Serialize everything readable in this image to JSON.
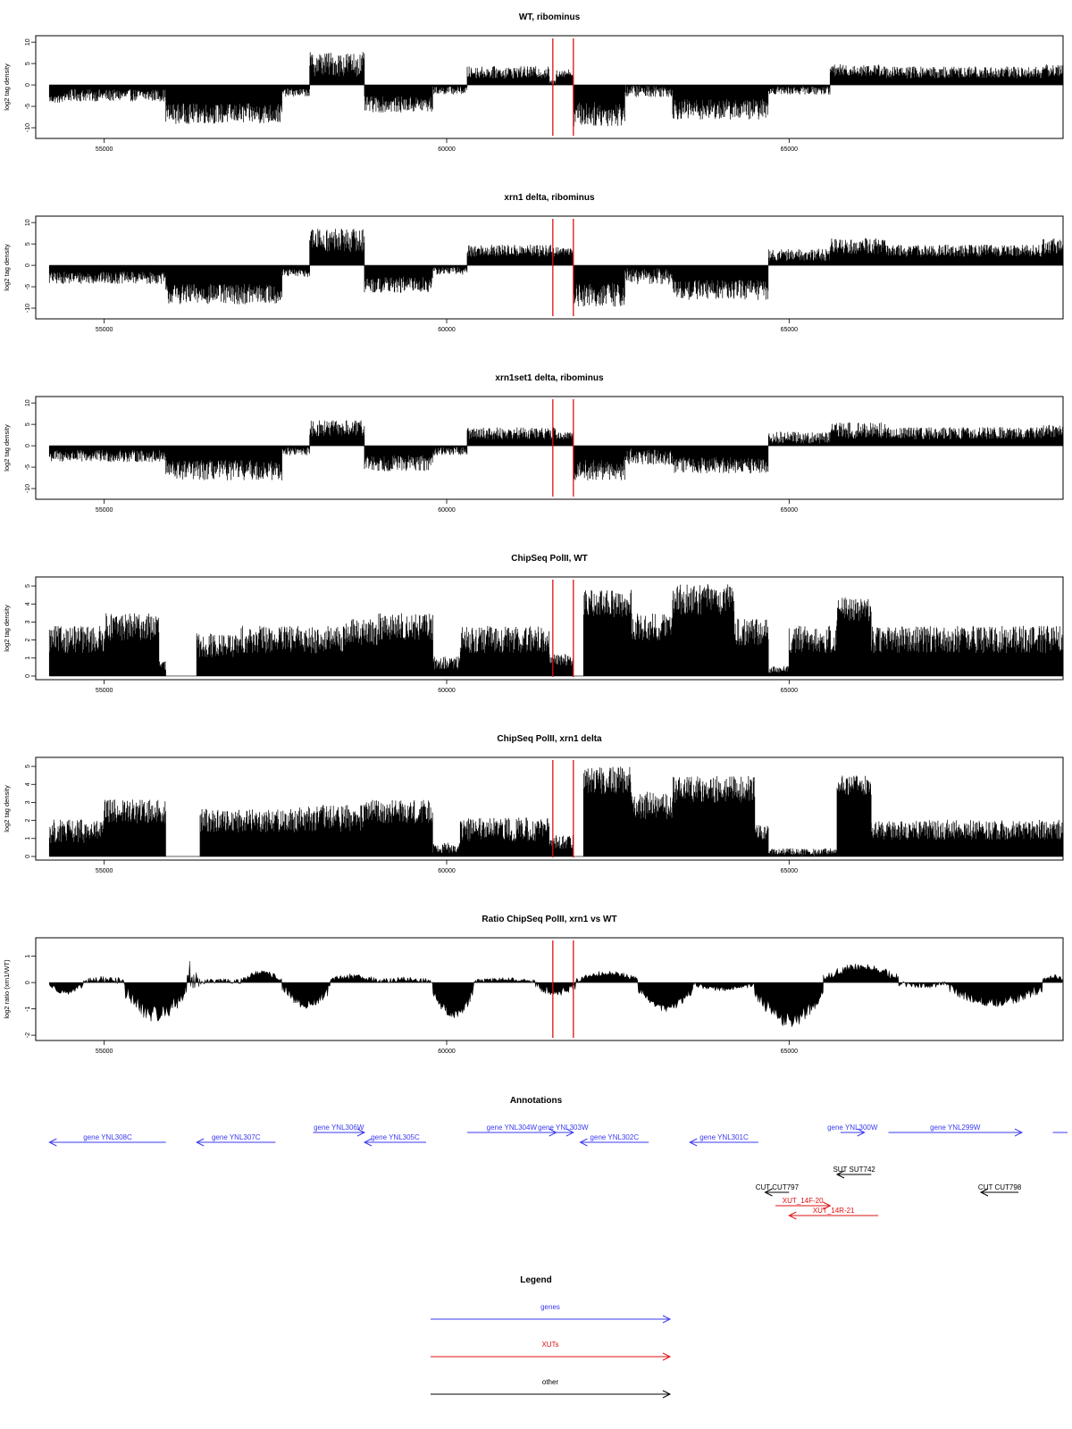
{
  "colors": {
    "genes": "#3a3af0",
    "xuts": "#e01010",
    "other": "#000000",
    "data": "#000000",
    "marker": "#e01010"
  },
  "markers_x": [
    61550,
    61850
  ],
  "x_axis": {
    "range": [
      54000,
      69000
    ],
    "ticks": [
      55000,
      60000,
      65000
    ],
    "tick_labels": [
      "55000",
      "60000",
      "65000"
    ]
  },
  "chart_data": [
    {
      "type": "bar",
      "title": "WT, ribominus",
      "ylabel": "log2 tag density",
      "ylim": [
        -12.5,
        11.5
      ],
      "yticks": [
        -10,
        -5,
        0,
        5,
        10
      ],
      "ytick_labels": [
        "-10",
        "-5",
        "0",
        "5",
        "10"
      ],
      "x_range": [
        54000,
        69000
      ],
      "profile": [
        [
          54200,
          54400,
          -3,
          1
        ],
        [
          54400,
          55900,
          -2,
          1.5
        ],
        [
          55900,
          57600,
          -6,
          2.5
        ],
        [
          57600,
          58000,
          -1.5,
          1
        ],
        [
          58000,
          58800,
          4,
          3
        ],
        [
          58800,
          59800,
          -4,
          2
        ],
        [
          59800,
          60300,
          -1,
          1
        ],
        [
          60300,
          61500,
          2.5,
          1.5
        ],
        [
          61500,
          61600,
          0.5,
          0.5
        ],
        [
          61600,
          61850,
          2.5,
          1
        ],
        [
          61850,
          62600,
          -6,
          3
        ],
        [
          62600,
          63300,
          -1,
          1.5
        ],
        [
          63300,
          64700,
          -5,
          2.5
        ],
        [
          64700,
          65600,
          -1,
          1
        ],
        [
          65600,
          66400,
          3,
          1.5
        ],
        [
          66400,
          68700,
          2.5,
          1.5
        ],
        [
          68700,
          69000,
          3,
          1.5
        ]
      ]
    },
    {
      "type": "bar",
      "title": "xrn1 delta, ribominus",
      "ylabel": "log2 tag density",
      "ylim": [
        -12.5,
        11.5
      ],
      "yticks": [
        -10,
        -5,
        0,
        5,
        10
      ],
      "ytick_labels": [
        "-10",
        "-5",
        "0",
        "5",
        "10"
      ],
      "x_range": [
        54000,
        69000
      ],
      "profile": [
        [
          54200,
          55900,
          -2.5,
          1.5
        ],
        [
          55900,
          57600,
          -6,
          2.5
        ],
        [
          57600,
          58000,
          -1.5,
          1
        ],
        [
          58000,
          58800,
          5,
          3
        ],
        [
          58800,
          59800,
          -4,
          2
        ],
        [
          59800,
          60300,
          -1,
          1
        ],
        [
          60300,
          61600,
          3,
          1.5
        ],
        [
          61600,
          61850,
          3,
          1
        ],
        [
          61850,
          62600,
          -6,
          3
        ],
        [
          62600,
          63300,
          -2,
          2
        ],
        [
          63300,
          64700,
          -5,
          2.5
        ],
        [
          64700,
          65600,
          2,
          1.5
        ],
        [
          65600,
          66400,
          4,
          2
        ],
        [
          66400,
          68700,
          3,
          1.5
        ],
        [
          68700,
          69000,
          4,
          2
        ]
      ]
    },
    {
      "type": "bar",
      "title": "xrn1set1 delta, ribominus",
      "ylabel": "log2 tag density",
      "ylim": [
        -12.5,
        11.5
      ],
      "yticks": [
        -10,
        -5,
        0,
        5,
        10
      ],
      "ytick_labels": [
        "-10",
        "-5",
        "0",
        "5",
        "10"
      ],
      "x_range": [
        54000,
        69000
      ],
      "profile": [
        [
          54200,
          55900,
          -2,
          1.5
        ],
        [
          55900,
          57600,
          -5,
          2.5
        ],
        [
          57600,
          58000,
          -1,
          1
        ],
        [
          58000,
          58800,
          3.5,
          2
        ],
        [
          58800,
          59800,
          -3.5,
          2
        ],
        [
          59800,
          60300,
          -1,
          1
        ],
        [
          60300,
          61600,
          2.5,
          1.5
        ],
        [
          61600,
          61850,
          2,
          1
        ],
        [
          61850,
          62600,
          -5,
          2.5
        ],
        [
          62600,
          63300,
          -2,
          2
        ],
        [
          63300,
          64700,
          -4,
          2
        ],
        [
          64700,
          65600,
          1.5,
          1.5
        ],
        [
          65600,
          66400,
          3,
          2
        ],
        [
          66400,
          68700,
          2.5,
          1.5
        ],
        [
          68700,
          69000,
          3,
          1.5
        ]
      ]
    },
    {
      "type": "bar",
      "title": "ChipSeq PolII, WT",
      "ylabel": "log2 tag density",
      "ylim": [
        -0.2,
        5.5
      ],
      "yticks": [
        0,
        1,
        2,
        3,
        4,
        5
      ],
      "ytick_labels": [
        "0",
        "1",
        "2",
        "3",
        "4",
        "5"
      ],
      "x_range": [
        54000,
        69000
      ],
      "profile": [
        [
          54200,
          55000,
          1.8,
          0.8
        ],
        [
          55000,
          55800,
          2.5,
          0.8
        ],
        [
          55800,
          55900,
          0.5,
          0.3
        ],
        [
          55900,
          56350,
          0,
          0
        ],
        [
          56350,
          57000,
          1.5,
          0.7
        ],
        [
          57000,
          58500,
          1.8,
          0.8
        ],
        [
          58500,
          59000,
          2.2,
          0.8
        ],
        [
          59000,
          59800,
          2.5,
          0.8
        ],
        [
          59800,
          60200,
          0.6,
          0.4
        ],
        [
          60200,
          61500,
          1.8,
          0.8
        ],
        [
          61500,
          61850,
          0.8,
          0.4
        ],
        [
          62000,
          62700,
          3.8,
          0.8
        ],
        [
          62700,
          63300,
          2.5,
          0.8
        ],
        [
          63300,
          64200,
          4,
          0.9
        ],
        [
          64200,
          64700,
          2.2,
          0.8
        ],
        [
          64700,
          65000,
          0.3,
          0.2
        ],
        [
          65000,
          65700,
          1.8,
          0.8
        ],
        [
          65700,
          66200,
          3.5,
          0.7
        ],
        [
          66200,
          69000,
          1.8,
          0.8
        ]
      ]
    },
    {
      "type": "bar",
      "title": "ChipSeq PolII, xrn1 delta",
      "ylabel": "log2 tag density",
      "ylim": [
        -0.2,
        5.5
      ],
      "yticks": [
        0,
        1,
        2,
        3,
        4,
        5
      ],
      "ytick_labels": [
        "0",
        "1",
        "2",
        "3",
        "4",
        "5"
      ],
      "x_range": [
        54000,
        69000
      ],
      "profile": [
        [
          54200,
          55000,
          1.2,
          0.7
        ],
        [
          55000,
          55900,
          2.3,
          0.7
        ],
        [
          55900,
          56400,
          0,
          0
        ],
        [
          56400,
          57800,
          1.8,
          0.7
        ],
        [
          57800,
          58800,
          1.9,
          0.8
        ],
        [
          58800,
          59800,
          2.3,
          0.7
        ],
        [
          59800,
          60200,
          0.4,
          0.3
        ],
        [
          60200,
          61500,
          1.3,
          0.7
        ],
        [
          61500,
          61850,
          0.7,
          0.4
        ],
        [
          62000,
          62700,
          4,
          0.8
        ],
        [
          62700,
          63300,
          2.6,
          0.8
        ],
        [
          63300,
          64500,
          3.5,
          0.8
        ],
        [
          64500,
          64700,
          1.2,
          0.5
        ],
        [
          64700,
          65700,
          0.2,
          0.2
        ],
        [
          65700,
          66200,
          3.8,
          0.6
        ],
        [
          66200,
          69000,
          1.3,
          0.6
        ]
      ]
    },
    {
      "type": "area",
      "title": "Ratio ChipSeq PolII, xrn1 vs WT",
      "ylabel": "log2 ratio (xrn1/WT)",
      "ylim": [
        -2.2,
        1.7
      ],
      "yticks": [
        -2,
        -1,
        0,
        1
      ],
      "ytick_labels": [
        "-2",
        "-1",
        "0",
        "1"
      ],
      "x_range": [
        54000,
        69000
      ],
      "profile": [
        [
          54200,
          54700,
          -0.3,
          0.2
        ],
        [
          54700,
          55300,
          0.1,
          0.25
        ],
        [
          55300,
          56200,
          -1,
          0.6
        ],
        [
          56200,
          56400,
          0.2,
          1.3
        ],
        [
          56400,
          57000,
          0.05,
          0.2
        ],
        [
          57000,
          57600,
          0.3,
          0.2
        ],
        [
          57600,
          58300,
          -0.7,
          0.4
        ],
        [
          58300,
          59000,
          0.2,
          0.25
        ],
        [
          59000,
          59800,
          0.1,
          0.2
        ],
        [
          59800,
          60400,
          -1,
          0.4
        ],
        [
          60400,
          61300,
          0.1,
          0.15
        ],
        [
          61300,
          61900,
          -0.3,
          0.3
        ],
        [
          61900,
          62800,
          0.3,
          0.2
        ],
        [
          62800,
          63600,
          -0.8,
          0.3
        ],
        [
          63600,
          64500,
          -0.2,
          0.2
        ],
        [
          64500,
          65500,
          -1.2,
          0.6
        ],
        [
          65500,
          66600,
          0.5,
          0.3
        ],
        [
          66600,
          67300,
          -0.1,
          0.2
        ],
        [
          67300,
          68700,
          -0.6,
          0.4
        ],
        [
          68700,
          69000,
          0.2,
          0.2
        ]
      ]
    }
  ],
  "annotations": {
    "title": "Annotations",
    "items": [
      {
        "label": "gene YNL308C",
        "x0": 54200,
        "x1": 55900,
        "dir": "left",
        "row": 2,
        "kind": "genes"
      },
      {
        "label": "gene YNL307C",
        "x0": 56350,
        "x1": 57500,
        "dir": "left",
        "row": 2,
        "kind": "genes"
      },
      {
        "label": "gene YNL306W",
        "x0": 58050,
        "x1": 58800,
        "dir": "right",
        "row": 1,
        "kind": "genes"
      },
      {
        "label": "gene YNL305C",
        "x0": 58800,
        "x1": 59700,
        "dir": "left",
        "row": 2,
        "kind": "genes"
      },
      {
        "label": "gene YNL304W",
        "x0": 60300,
        "x1": 61600,
        "dir": "right",
        "row": 1,
        "kind": "genes"
      },
      {
        "label": "gene YNL303W",
        "x0": 61550,
        "x1": 61850,
        "dir": "right",
        "row": 1,
        "kind": "genes"
      },
      {
        "label": "gene YNL302C",
        "x0": 61950,
        "x1": 62950,
        "dir": "left",
        "row": 2,
        "kind": "genes"
      },
      {
        "label": "gene YNL301C",
        "x0": 63550,
        "x1": 64550,
        "dir": "left",
        "row": 2,
        "kind": "genes"
      },
      {
        "label": "gene YNL300W",
        "x0": 65750,
        "x1": 66100,
        "dir": "right",
        "row": 1,
        "kind": "genes"
      },
      {
        "label": "gene YNL299W",
        "x0": 66450,
        "x1": 68400,
        "dir": "right",
        "row": 1,
        "kind": "genes"
      },
      {
        "label": "",
        "x0": 68850,
        "x1": 69800,
        "dir": "none",
        "row": 1,
        "kind": "genes"
      },
      {
        "label": "SUT SUT742",
        "x0": 65700,
        "x1": 66200,
        "dir": "left",
        "row": 3,
        "kind": "other"
      },
      {
        "label": "CUT CUT797",
        "x0": 64650,
        "x1": 65000,
        "dir": "left",
        "row": 4,
        "kind": "other"
      },
      {
        "label": "CUT CUT798",
        "x0": 67800,
        "x1": 68350,
        "dir": "left",
        "row": 4,
        "kind": "other"
      },
      {
        "label": "XUT_14F-20",
        "x0": 64800,
        "x1": 65600,
        "dir": "right",
        "row": 5,
        "kind": "xuts"
      },
      {
        "label": "XUT_14R-21",
        "x0": 65000,
        "x1": 66300,
        "dir": "left",
        "row": 6,
        "kind": "xuts"
      }
    ]
  },
  "legend": {
    "title": "Legend",
    "items": [
      {
        "label": "genes",
        "kind": "genes"
      },
      {
        "label": "XUTs",
        "kind": "xuts"
      },
      {
        "label": "other",
        "kind": "other"
      }
    ]
  }
}
